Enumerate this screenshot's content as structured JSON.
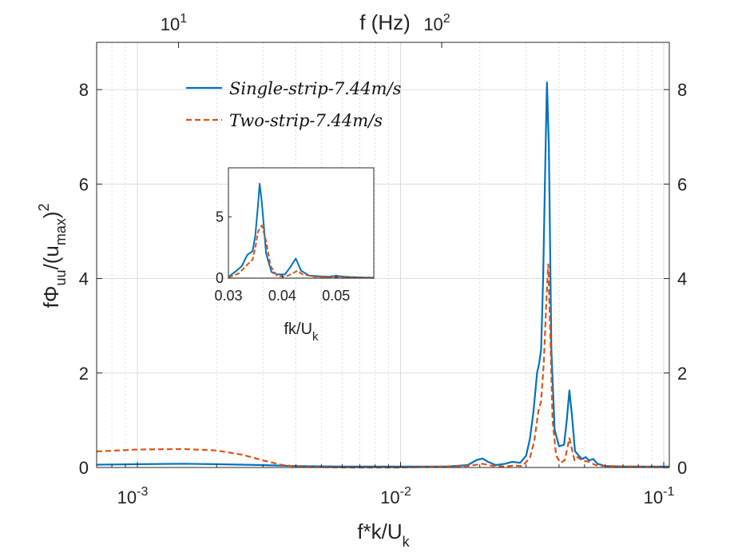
{
  "chart_data": [
    {
      "id": "main",
      "type": "line",
      "xscale": "log",
      "xlim": [
        0.0007,
        0.105
      ],
      "ylim": [
        0,
        9
      ],
      "xlabel_parts": [
        "f*k/U",
        "k"
      ],
      "ylabel_parts": [
        "f",
        "Φ",
        "uu",
        "/(u",
        "max",
        ")",
        "2"
      ],
      "top_axis": {
        "label": "f (Hz)",
        "ticks": [
          {
            "x": 0.001433,
            "base": "10",
            "exp": "1"
          },
          {
            "x": 0.01433,
            "base": "10",
            "exp": "2"
          }
        ]
      },
      "x_ticks": [
        {
          "x": 0.001,
          "base": "10",
          "exp": "-3"
        },
        {
          "x": 0.01,
          "base": "10",
          "exp": "-2"
        },
        {
          "x": 0.1,
          "base": "10",
          "exp": "-1"
        }
      ],
      "y_ticks": [
        0,
        2,
        4,
        6,
        8
      ],
      "grid": true,
      "legend_position": "top-left",
      "series": [
        {
          "name": "Single-strip-7.44m/s",
          "color": "#0072BD",
          "style": "solid",
          "points": [
            [
              0.0007,
              0.06
            ],
            [
              0.001,
              0.07
            ],
            [
              0.0015,
              0.08
            ],
            [
              0.002,
              0.07
            ],
            [
              0.003,
              0.05
            ],
            [
              0.004,
              0.03
            ],
            [
              0.006,
              0.02
            ],
            [
              0.01,
              0.02
            ],
            [
              0.015,
              0.02
            ],
            [
              0.018,
              0.05
            ],
            [
              0.0195,
              0.16
            ],
            [
              0.0205,
              0.19
            ],
            [
              0.0215,
              0.12
            ],
            [
              0.023,
              0.05
            ],
            [
              0.025,
              0.08
            ],
            [
              0.0265,
              0.12
            ],
            [
              0.0285,
              0.1
            ],
            [
              0.03,
              0.25
            ],
            [
              0.031,
              0.6
            ],
            [
              0.032,
              1.2
            ],
            [
              0.033,
              2.0
            ],
            [
              0.0336,
              2.2
            ],
            [
              0.0342,
              2.5
            ],
            [
              0.0348,
              4.0
            ],
            [
              0.0355,
              6.5
            ],
            [
              0.036,
              8.15
            ],
            [
              0.0366,
              6.8
            ],
            [
              0.0374,
              2.5
            ],
            [
              0.0385,
              0.8
            ],
            [
              0.04,
              0.45
            ],
            [
              0.0418,
              0.48
            ],
            [
              0.0428,
              1.0
            ],
            [
              0.0438,
              1.63
            ],
            [
              0.0448,
              1.1
            ],
            [
              0.046,
              0.35
            ],
            [
              0.0475,
              0.25
            ],
            [
              0.049,
              0.18
            ],
            [
              0.0505,
              0.22
            ],
            [
              0.052,
              0.15
            ],
            [
              0.054,
              0.18
            ],
            [
              0.056,
              0.08
            ],
            [
              0.06,
              0.03
            ],
            [
              0.07,
              0.02
            ],
            [
              0.105,
              0.02
            ]
          ]
        },
        {
          "name": "Two-strip-7.44m/s",
          "color": "#D95319",
          "style": "dashed",
          "points": [
            [
              0.0007,
              0.34
            ],
            [
              0.001,
              0.38
            ],
            [
              0.0015,
              0.39
            ],
            [
              0.002,
              0.36
            ],
            [
              0.0025,
              0.27
            ],
            [
              0.003,
              0.15
            ],
            [
              0.0035,
              0.06
            ],
            [
              0.004,
              0.02
            ],
            [
              0.006,
              0.0
            ],
            [
              0.01,
              0.0
            ],
            [
              0.014,
              0.02
            ],
            [
              0.018,
              0.03
            ],
            [
              0.0205,
              0.08
            ],
            [
              0.022,
              0.04
            ],
            [
              0.025,
              0.02
            ],
            [
              0.027,
              0.04
            ],
            [
              0.029,
              0.03
            ],
            [
              0.031,
              0.2
            ],
            [
              0.0322,
              0.55
            ],
            [
              0.0334,
              1.2
            ],
            [
              0.0342,
              1.4
            ],
            [
              0.035,
              2.2
            ],
            [
              0.0358,
              3.5
            ],
            [
              0.0364,
              4.3
            ],
            [
              0.037,
              3.0
            ],
            [
              0.0378,
              1.0
            ],
            [
              0.039,
              0.25
            ],
            [
              0.0405,
              0.1
            ],
            [
              0.042,
              0.15
            ],
            [
              0.0432,
              0.45
            ],
            [
              0.0438,
              0.62
            ],
            [
              0.0445,
              0.45
            ],
            [
              0.0458,
              0.15
            ],
            [
              0.047,
              0.22
            ],
            [
              0.049,
              0.15
            ],
            [
              0.052,
              0.12
            ],
            [
              0.055,
              0.05
            ],
            [
              0.06,
              0.03
            ],
            [
              0.08,
              0.02
            ],
            [
              0.105,
              0.0
            ]
          ]
        }
      ]
    },
    {
      "id": "inset",
      "type": "line",
      "xscale": "linear",
      "xlim": [
        0.03,
        0.057
      ],
      "ylim": [
        0,
        9
      ],
      "xlabel_parts": [
        "fk/U",
        "k"
      ],
      "x_ticks": [
        "0.03",
        "0.04",
        "0.05"
      ],
      "y_ticks": [
        0,
        5
      ],
      "series": [
        {
          "name": "Single-strip-7.44m/s",
          "color": "#0072BD",
          "style": "solid",
          "points": [
            [
              0.03,
              0.1
            ],
            [
              0.0315,
              0.6
            ],
            [
              0.0325,
              1.0
            ],
            [
              0.0335,
              1.9
            ],
            [
              0.0345,
              2.2
            ],
            [
              0.035,
              3.5
            ],
            [
              0.0355,
              6.0
            ],
            [
              0.0358,
              7.7
            ],
            [
              0.0362,
              6.2
            ],
            [
              0.037,
              2.0
            ],
            [
              0.038,
              0.5
            ],
            [
              0.039,
              0.3
            ],
            [
              0.0405,
              0.3
            ],
            [
              0.0415,
              0.9
            ],
            [
              0.0425,
              1.6
            ],
            [
              0.0435,
              0.6
            ],
            [
              0.045,
              0.2
            ],
            [
              0.047,
              0.15
            ],
            [
              0.0485,
              0.12
            ],
            [
              0.05,
              0.18
            ],
            [
              0.052,
              0.1
            ],
            [
              0.055,
              0.05
            ],
            [
              0.057,
              0.03
            ]
          ]
        },
        {
          "name": "Two-strip-7.44m/s",
          "color": "#D95319",
          "style": "dashed",
          "points": [
            [
              0.03,
              0.05
            ],
            [
              0.032,
              0.4
            ],
            [
              0.0335,
              1.1
            ],
            [
              0.0345,
              1.5
            ],
            [
              0.035,
              2.5
            ],
            [
              0.0355,
              3.8
            ],
            [
              0.0362,
              4.3
            ],
            [
              0.037,
              3.0
            ],
            [
              0.0378,
              1.0
            ],
            [
              0.039,
              0.2
            ],
            [
              0.0405,
              0.1
            ],
            [
              0.042,
              0.4
            ],
            [
              0.0428,
              0.6
            ],
            [
              0.0438,
              0.3
            ],
            [
              0.046,
              0.12
            ],
            [
              0.05,
              0.08
            ],
            [
              0.057,
              0.02
            ]
          ]
        }
      ]
    }
  ]
}
